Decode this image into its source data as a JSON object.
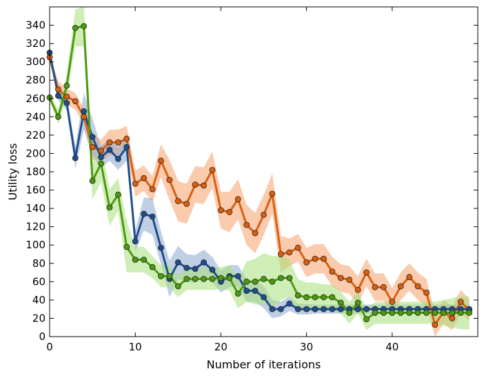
{
  "chart_data": {
    "type": "line",
    "xlabel": "Number of iterations",
    "ylabel": "Utility loss",
    "xlim": [
      0,
      50
    ],
    "ylim": [
      0,
      360
    ],
    "xticks": [
      0,
      10,
      20,
      30,
      40
    ],
    "yticks": [
      0,
      20,
      40,
      60,
      80,
      100,
      120,
      140,
      160,
      180,
      200,
      220,
      240,
      260,
      280,
      300,
      320,
      340
    ],
    "grid": false,
    "legend": "none",
    "x": [
      0,
      1,
      2,
      3,
      4,
      5,
      6,
      7,
      8,
      9,
      10,
      11,
      12,
      13,
      14,
      15,
      16,
      17,
      18,
      19,
      20,
      21,
      22,
      23,
      24,
      25,
      26,
      27,
      28,
      29,
      30,
      31,
      32,
      33,
      34,
      35,
      36,
      37,
      38,
      39,
      40,
      41,
      42,
      43,
      44,
      45,
      46,
      47,
      48,
      49
    ],
    "series": [
      {
        "name": "orange",
        "color": "#d95f0e",
        "band_color": "#f5a06a",
        "values": [
          305,
          270,
          262,
          257,
          240,
          207,
          203,
          212,
          212,
          216,
          167,
          173,
          161,
          192,
          171,
          148,
          145,
          166,
          165,
          182,
          138,
          136,
          150,
          122,
          113,
          133,
          156,
          90,
          92,
          97,
          81,
          85,
          85,
          71,
          64,
          62,
          51,
          70,
          54,
          54,
          38,
          55,
          65,
          55,
          48,
          13,
          27,
          20,
          38,
          29
        ],
        "spread": [
          5,
          9,
          9,
          9,
          9,
          14,
          12,
          14,
          14,
          14,
          14,
          14,
          14,
          18,
          22,
          22,
          22,
          20,
          20,
          20,
          20,
          22,
          22,
          22,
          22,
          22,
          22,
          20,
          15,
          15,
          16,
          16,
          16,
          16,
          15,
          15,
          15,
          15,
          15,
          15,
          15,
          15,
          15,
          15,
          15,
          13,
          13,
          13,
          13,
          12
        ]
      },
      {
        "name": "blue",
        "color": "#1f4e8c",
        "band_color": "#8ea8d0",
        "values": [
          310,
          263,
          255,
          195,
          246,
          218,
          196,
          204,
          194,
          207,
          104,
          134,
          131,
          97,
          63,
          81,
          75,
          74,
          81,
          73,
          60,
          66,
          66,
          50,
          50,
          43,
          30,
          30,
          36,
          30,
          30,
          30,
          30,
          30,
          30,
          30,
          30,
          30,
          30,
          30,
          30,
          30,
          30,
          30,
          30,
          30,
          30,
          30,
          30,
          30
        ],
        "spread": [
          3,
          5,
          8,
          12,
          20,
          20,
          12,
          12,
          12,
          15,
          12,
          18,
          20,
          18,
          20,
          18,
          15,
          15,
          14,
          14,
          12,
          12,
          12,
          12,
          12,
          12,
          10,
          8,
          8,
          6,
          6,
          5,
          5,
          5,
          5,
          5,
          5,
          5,
          5,
          5,
          5,
          5,
          5,
          5,
          5,
          5,
          5,
          5,
          5,
          5
        ]
      },
      {
        "name": "green",
        "color": "#4c9a0f",
        "band_color": "#a8e07a",
        "values": [
          261,
          240,
          274,
          337,
          339,
          170,
          189,
          141,
          155,
          98,
          84,
          84,
          76,
          66,
          66,
          55,
          63,
          63,
          63,
          63,
          64,
          64,
          47,
          60,
          60,
          63,
          60,
          64,
          64,
          45,
          43,
          43,
          43,
          43,
          37,
          26,
          37,
          19,
          26,
          26,
          26,
          26,
          26,
          26,
          26,
          26,
          26,
          26,
          26,
          26
        ],
        "spread": [
          3,
          8,
          12,
          20,
          22,
          20,
          20,
          20,
          18,
          28,
          14,
          14,
          12,
          12,
          12,
          12,
          12,
          12,
          12,
          12,
          12,
          14,
          16,
          22,
          25,
          28,
          28,
          24,
          20,
          18,
          16,
          16,
          14,
          14,
          12,
          12,
          12,
          12,
          12,
          12,
          12,
          12,
          12,
          12,
          12,
          12,
          14,
          16,
          18,
          18
        ]
      }
    ]
  }
}
